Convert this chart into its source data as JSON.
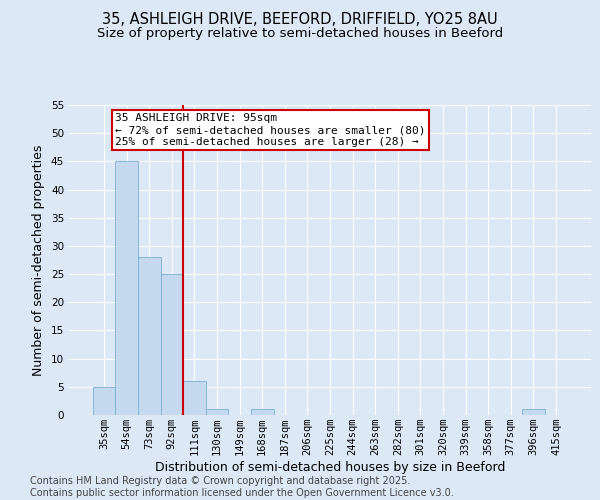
{
  "title_line1": "35, ASHLEIGH DRIVE, BEEFORD, DRIFFIELD, YO25 8AU",
  "title_line2": "Size of property relative to semi-detached houses in Beeford",
  "xlabel": "Distribution of semi-detached houses by size in Beeford",
  "ylabel": "Number of semi-detached properties",
  "categories": [
    "35sqm",
    "54sqm",
    "73sqm",
    "92sqm",
    "111sqm",
    "130sqm",
    "149sqm",
    "168sqm",
    "187sqm",
    "206sqm",
    "225sqm",
    "244sqm",
    "263sqm",
    "282sqm",
    "301sqm",
    "320sqm",
    "339sqm",
    "358sqm",
    "377sqm",
    "396sqm",
    "415sqm"
  ],
  "values": [
    5,
    45,
    28,
    25,
    6,
    1,
    0,
    1,
    0,
    0,
    0,
    0,
    0,
    0,
    0,
    0,
    0,
    0,
    0,
    1,
    0
  ],
  "bar_color": "#c5d9ee",
  "bar_edgecolor": "#7aafd4",
  "red_line_x": 3.5,
  "annotation_title": "35 ASHLEIGH DRIVE: 95sqm",
  "annotation_line2": "← 72% of semi-detached houses are smaller (80)",
  "annotation_line3": "25% of semi-detached houses are larger (28) →",
  "annotation_color": "#cc0000",
  "ylim": [
    0,
    55
  ],
  "yticks": [
    0,
    5,
    10,
    15,
    20,
    25,
    30,
    35,
    40,
    45,
    50,
    55
  ],
  "footer_line1": "Contains HM Land Registry data © Crown copyright and database right 2025.",
  "footer_line2": "Contains public sector information licensed under the Open Government Licence v3.0.",
  "bg_color": "#dce8f5",
  "plot_bg_color": "#dce8f5",
  "grid_color": "#ffffff",
  "title_fontsize": 10.5,
  "subtitle_fontsize": 9.5,
  "axis_label_fontsize": 9,
  "tick_fontsize": 7.5,
  "footer_fontsize": 7,
  "annotation_fontsize": 8
}
